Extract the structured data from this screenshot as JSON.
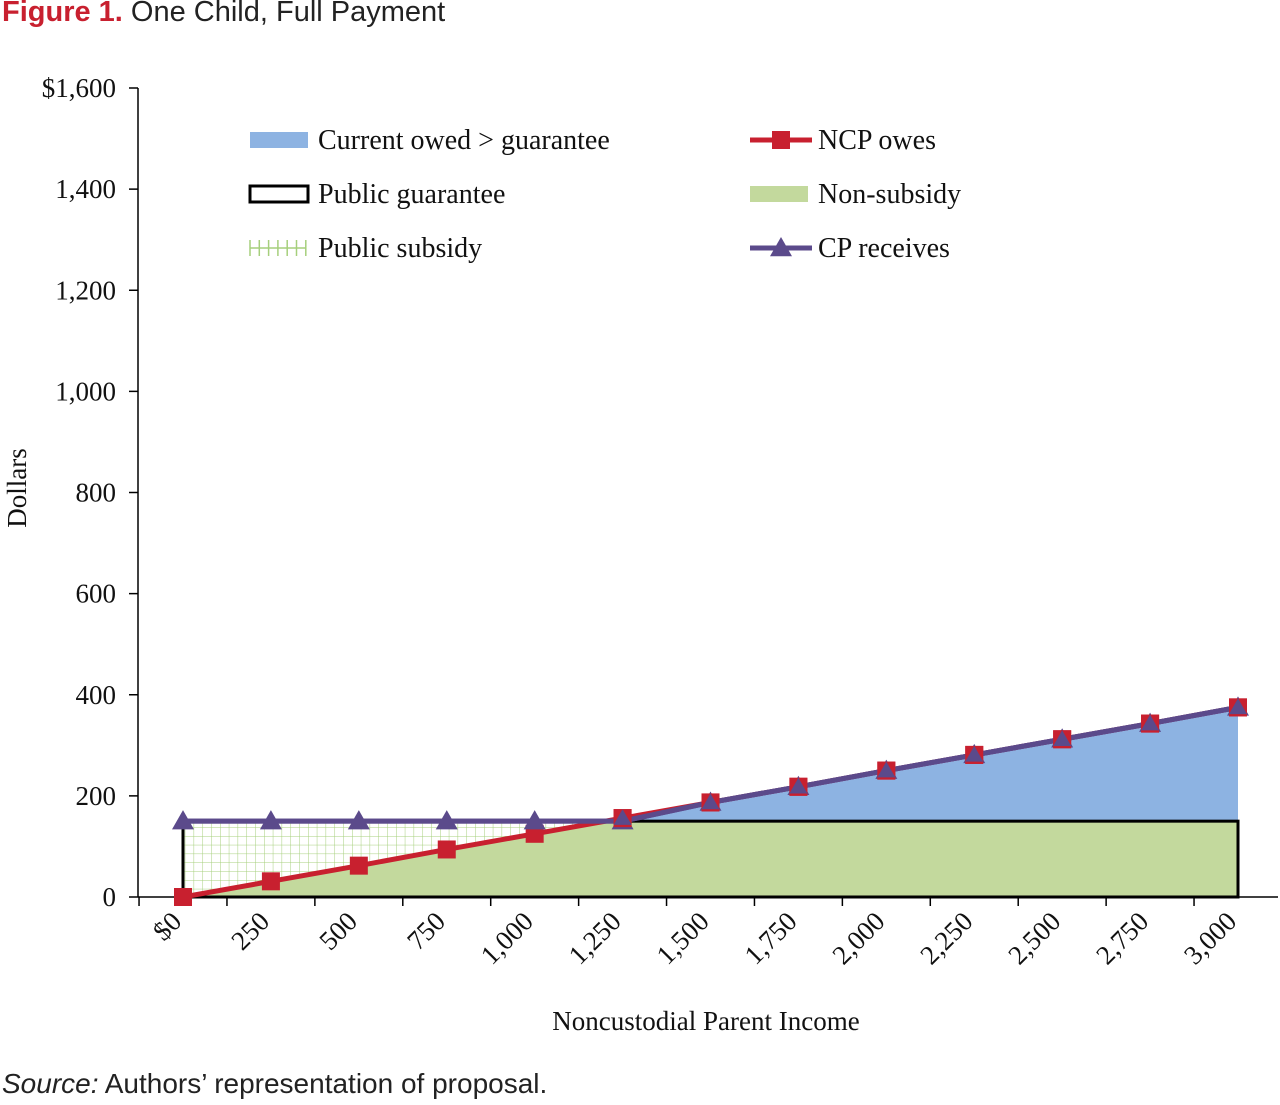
{
  "figure": {
    "label": "Figure 1.",
    "title": "One Child, Full Payment"
  },
  "source": {
    "label": "Source:",
    "text": "Authors’ representation of proposal."
  },
  "chart_data": {
    "type": "line",
    "xlabel": "Noncustodial Parent Income",
    "ylabel": "Dollars",
    "x": [
      0,
      250,
      500,
      750,
      1000,
      1250,
      1500,
      1750,
      2000,
      2250,
      2500,
      2750,
      3000
    ],
    "x_tick_labels": [
      "$0",
      "250",
      "500",
      "750",
      "1,000",
      "1,250",
      "1,500",
      "1,750",
      "2,000",
      "2,250",
      "2,500",
      "2,750",
      "3,000"
    ],
    "ylim": [
      0,
      1600
    ],
    "y_ticks": [
      0,
      200,
      400,
      600,
      800,
      1000,
      1200,
      1400,
      1600
    ],
    "y_tick_labels": [
      "0",
      "200",
      "400",
      "600",
      "800",
      "1,000",
      "1,200",
      "1,400",
      "$1,600"
    ],
    "guarantee": 150,
    "grid": false,
    "legend_position": "top",
    "series": [
      {
        "name": "NCP owes",
        "kind": "line-square",
        "color": "#c8202f",
        "values": [
          0,
          31,
          62,
          94,
          125,
          156,
          187,
          218,
          250,
          281,
          312,
          343,
          375
        ]
      },
      {
        "name": "CP receives",
        "kind": "line-triangle",
        "color": "#5b4a8b",
        "values": [
          150,
          150,
          150,
          150,
          150,
          150,
          187,
          218,
          250,
          281,
          312,
          343,
          375
        ]
      }
    ],
    "areas": [
      {
        "name": "Current owed > guarantee",
        "color": "#8db3e2"
      },
      {
        "name": "Public guarantee",
        "color": "#000000"
      },
      {
        "name": "Public subsidy",
        "color": "#c3dca3"
      },
      {
        "name": "Non-subsidy",
        "color": "#c3d99d"
      }
    ],
    "legend": [
      {
        "label": "Current owed > guarantee",
        "kind": "area-fill",
        "color": "#8db3e2"
      },
      {
        "label": "NCP owes",
        "kind": "line-square",
        "color": "#c8202f"
      },
      {
        "label": "Public guarantee",
        "kind": "outline-box",
        "color": "#000000"
      },
      {
        "label": "Non-subsidy",
        "kind": "area-fill",
        "color": "#c3d99d"
      },
      {
        "label": "Public subsidy",
        "kind": "grid-fill",
        "color": "#c3dca3"
      },
      {
        "label": "CP receives",
        "kind": "line-triangle",
        "color": "#5b4a8b"
      }
    ]
  }
}
